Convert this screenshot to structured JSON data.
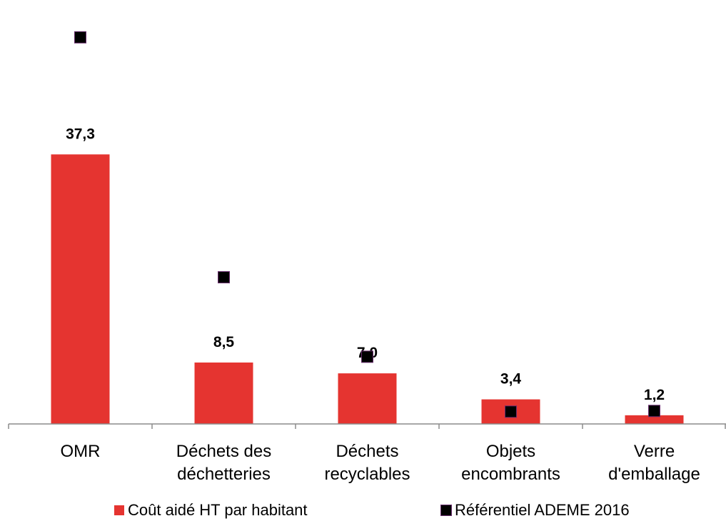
{
  "chart_data": {
    "type": "bar",
    "categories": [
      [
        "OMR"
      ],
      [
        "Déchets des",
        "déchetteries"
      ],
      [
        "Déchets",
        "recyclables"
      ],
      [
        "Objets",
        "encombrants"
      ],
      [
        "Verre",
        "d'emballage"
      ]
    ],
    "series": [
      {
        "name": "Coût aidé HT par habitant",
        "kind": "bar",
        "values": [
          37.3,
          8.5,
          7.0,
          3.4,
          1.2
        ],
        "labels": [
          "37,3",
          "8,5",
          "7,0",
          "3,4",
          "1,2"
        ]
      },
      {
        "name": "Référentiel ADEME 2016",
        "kind": "marker",
        "values": [
          53.5,
          20.3,
          9.3,
          1.7,
          1.8
        ]
      }
    ],
    "ylim": [
      0,
      56
    ],
    "grid": false,
    "legend_position": "bottom",
    "colors": {
      "bar": "#e53430",
      "marker": "#000000",
      "marker_edge": "#6a2e6e",
      "axis": "#8c8c8c"
    }
  },
  "legend": {
    "items": [
      "Coût aidé HT par habitant",
      "Référentiel ADEME 2016"
    ]
  }
}
